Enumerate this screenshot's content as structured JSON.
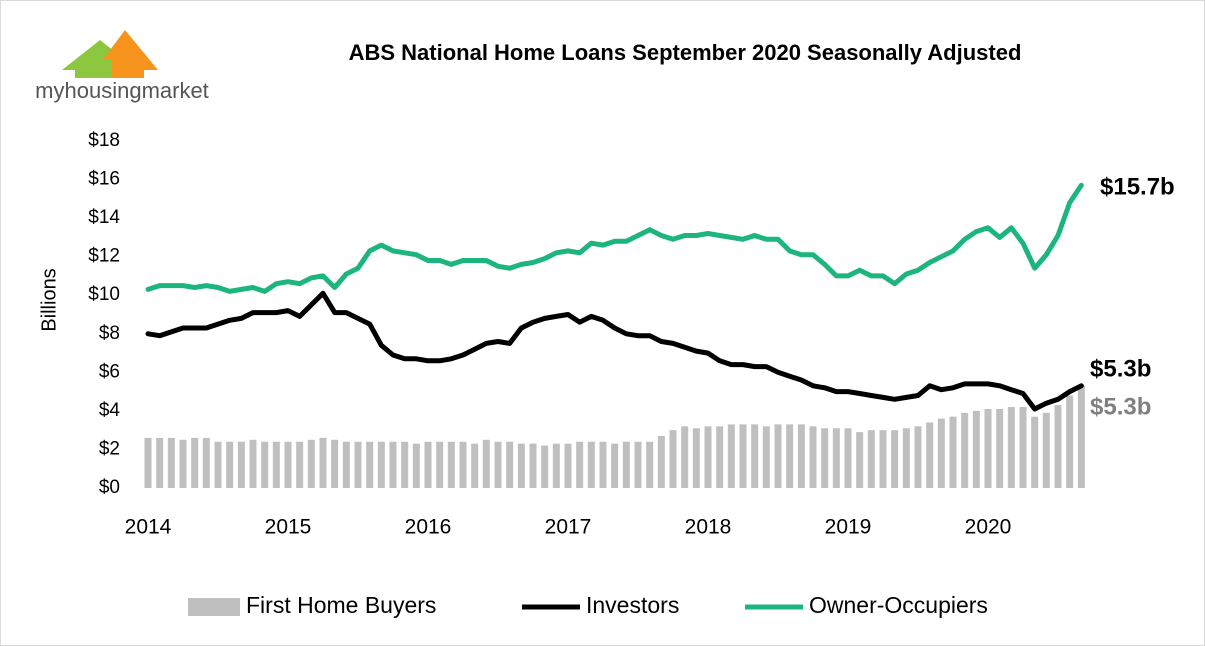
{
  "logo": {
    "text": "myhousingmarket"
  },
  "chart_data": {
    "type": "bar-line",
    "title": "ABS National Home Loans September 2020 Seasonally Adjusted",
    "y_label": "Billions",
    "categories": [
      "2014",
      null,
      null,
      null,
      null,
      null,
      null,
      null,
      null,
      null,
      null,
      null,
      "2015",
      null,
      null,
      null,
      null,
      null,
      null,
      null,
      null,
      null,
      null,
      null,
      "2016",
      null,
      null,
      null,
      null,
      null,
      null,
      null,
      null,
      null,
      null,
      null,
      "2017",
      null,
      null,
      null,
      null,
      null,
      null,
      null,
      null,
      null,
      null,
      null,
      "2018",
      null,
      null,
      null,
      null,
      null,
      null,
      null,
      null,
      null,
      null,
      null,
      "2019",
      null,
      null,
      null,
      null,
      null,
      null,
      null,
      null,
      null,
      null,
      null,
      "2020",
      null,
      null,
      null,
      null,
      null,
      null,
      null,
      null
    ],
    "ylim": [
      0,
      18
    ],
    "yticks": [
      {
        "value": 0,
        "label": "$0"
      },
      {
        "value": 2,
        "label": "$2"
      },
      {
        "value": 4,
        "label": "$4"
      },
      {
        "value": 6,
        "label": "$6"
      },
      {
        "value": 8,
        "label": "$8"
      },
      {
        "value": 10,
        "label": "$10"
      },
      {
        "value": 12,
        "label": "$12"
      },
      {
        "value": 14,
        "label": "$14"
      },
      {
        "value": 16,
        "label": "$16"
      },
      {
        "value": 18,
        "label": "$18"
      }
    ],
    "grid": false,
    "legend": "bottom",
    "series": [
      {
        "name": "First Home Buyers",
        "type": "bar",
        "color": "#bfbfbf",
        "end_label": "$5.3b",
        "end_label_color": "#808080",
        "values": [
          2.6,
          2.6,
          2.6,
          2.5,
          2.6,
          2.6,
          2.4,
          2.4,
          2.4,
          2.5,
          2.4,
          2.4,
          2.4,
          2.4,
          2.5,
          2.6,
          2.5,
          2.4,
          2.4,
          2.4,
          2.4,
          2.4,
          2.4,
          2.3,
          2.4,
          2.4,
          2.4,
          2.4,
          2.3,
          2.5,
          2.4,
          2.4,
          2.3,
          2.3,
          2.2,
          2.3,
          2.3,
          2.4,
          2.4,
          2.4,
          2.3,
          2.4,
          2.4,
          2.4,
          2.7,
          3.0,
          3.2,
          3.1,
          3.2,
          3.2,
          3.3,
          3.3,
          3.3,
          3.2,
          3.3,
          3.3,
          3.3,
          3.2,
          3.1,
          3.1,
          3.1,
          2.9,
          3.0,
          3.0,
          3.0,
          3.1,
          3.2,
          3.4,
          3.6,
          3.7,
          3.9,
          4.0,
          4.1,
          4.1,
          4.2,
          4.2,
          3.7,
          3.9,
          4.3,
          4.8,
          5.3
        ]
      },
      {
        "name": "Investors",
        "type": "line",
        "color": "#000000",
        "end_label": "$5.3b",
        "end_label_color": "#000000",
        "values": [
          8.0,
          7.9,
          8.1,
          8.3,
          8.3,
          8.3,
          8.5,
          8.7,
          8.8,
          9.1,
          9.1,
          9.1,
          9.2,
          8.9,
          9.5,
          10.1,
          9.1,
          9.1,
          8.8,
          8.5,
          7.4,
          6.9,
          6.7,
          6.7,
          6.6,
          6.6,
          6.7,
          6.9,
          7.2,
          7.5,
          7.6,
          7.5,
          8.3,
          8.6,
          8.8,
          8.9,
          9.0,
          8.6,
          8.9,
          8.7,
          8.3,
          8.0,
          7.9,
          7.9,
          7.6,
          7.5,
          7.3,
          7.1,
          7.0,
          6.6,
          6.4,
          6.4,
          6.3,
          6.3,
          6.0,
          5.8,
          5.6,
          5.3,
          5.2,
          5.0,
          5.0,
          4.9,
          4.8,
          4.7,
          4.6,
          4.7,
          4.8,
          5.3,
          5.1,
          5.2,
          5.4,
          5.4,
          5.4,
          5.3,
          5.1,
          4.9,
          4.1,
          4.4,
          4.6,
          5.0,
          5.3
        ]
      },
      {
        "name": "Owner-Occupiers",
        "type": "line",
        "color": "#1db57e",
        "end_label": "$15.7b",
        "end_label_color": "#000000",
        "values": [
          10.3,
          10.5,
          10.5,
          10.5,
          10.4,
          10.5,
          10.4,
          10.2,
          10.3,
          10.4,
          10.2,
          10.6,
          10.7,
          10.6,
          10.9,
          11.0,
          10.4,
          11.1,
          11.4,
          12.3,
          12.6,
          12.3,
          12.2,
          12.1,
          11.8,
          11.8,
          11.6,
          11.8,
          11.8,
          11.8,
          11.5,
          11.4,
          11.6,
          11.7,
          11.9,
          12.2,
          12.3,
          12.2,
          12.7,
          12.6,
          12.8,
          12.8,
          13.1,
          13.4,
          13.1,
          12.9,
          13.1,
          13.1,
          13.2,
          13.1,
          13.0,
          12.9,
          13.1,
          12.9,
          12.9,
          12.3,
          12.1,
          12.1,
          11.6,
          11.0,
          11.0,
          11.3,
          11.0,
          11.0,
          10.6,
          11.1,
          11.3,
          11.7,
          12.0,
          12.3,
          12.9,
          13.3,
          13.5,
          13.0,
          13.5,
          12.7,
          11.4,
          12.1,
          13.1,
          14.8,
          15.7
        ]
      }
    ]
  }
}
